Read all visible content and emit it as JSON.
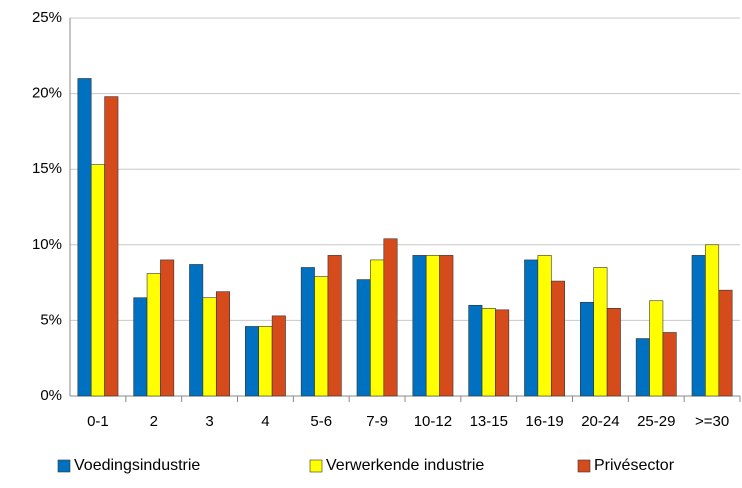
{
  "chart_data": {
    "type": "bar",
    "categories": [
      "0-1",
      "2",
      "3",
      "4",
      "5-6",
      "7-9",
      "10-12",
      "13-15",
      "16-19",
      "20-24",
      "25-29",
      ">=30"
    ],
    "series": [
      {
        "name": "Voedingsindustrie",
        "color": "#0070c0",
        "values": [
          21.0,
          6.5,
          8.7,
          4.6,
          8.5,
          7.7,
          9.3,
          6.0,
          9.0,
          6.2,
          3.8,
          9.3
        ]
      },
      {
        "name": "Verwerkende industrie",
        "color": "#ffff00",
        "values": [
          15.3,
          8.1,
          6.5,
          4.6,
          7.9,
          9.0,
          9.3,
          5.8,
          9.3,
          8.5,
          6.3,
          10.0
        ]
      },
      {
        "name": "Privésector",
        "color": "#d64b1b",
        "values": [
          19.8,
          9.0,
          6.9,
          5.3,
          9.3,
          10.4,
          9.3,
          5.7,
          7.6,
          5.8,
          4.2,
          7.0
        ]
      }
    ],
    "ylim": [
      0,
      25
    ],
    "yticks": [
      {
        "value": 0,
        "label": "0%"
      },
      {
        "value": 5,
        "label": "5%"
      },
      {
        "value": 10,
        "label": "10%"
      },
      {
        "value": 15,
        "label": "15%"
      },
      {
        "value": 20,
        "label": "20%"
      },
      {
        "value": 25,
        "label": "25%"
      }
    ],
    "grid": true,
    "legend": "bottom"
  }
}
